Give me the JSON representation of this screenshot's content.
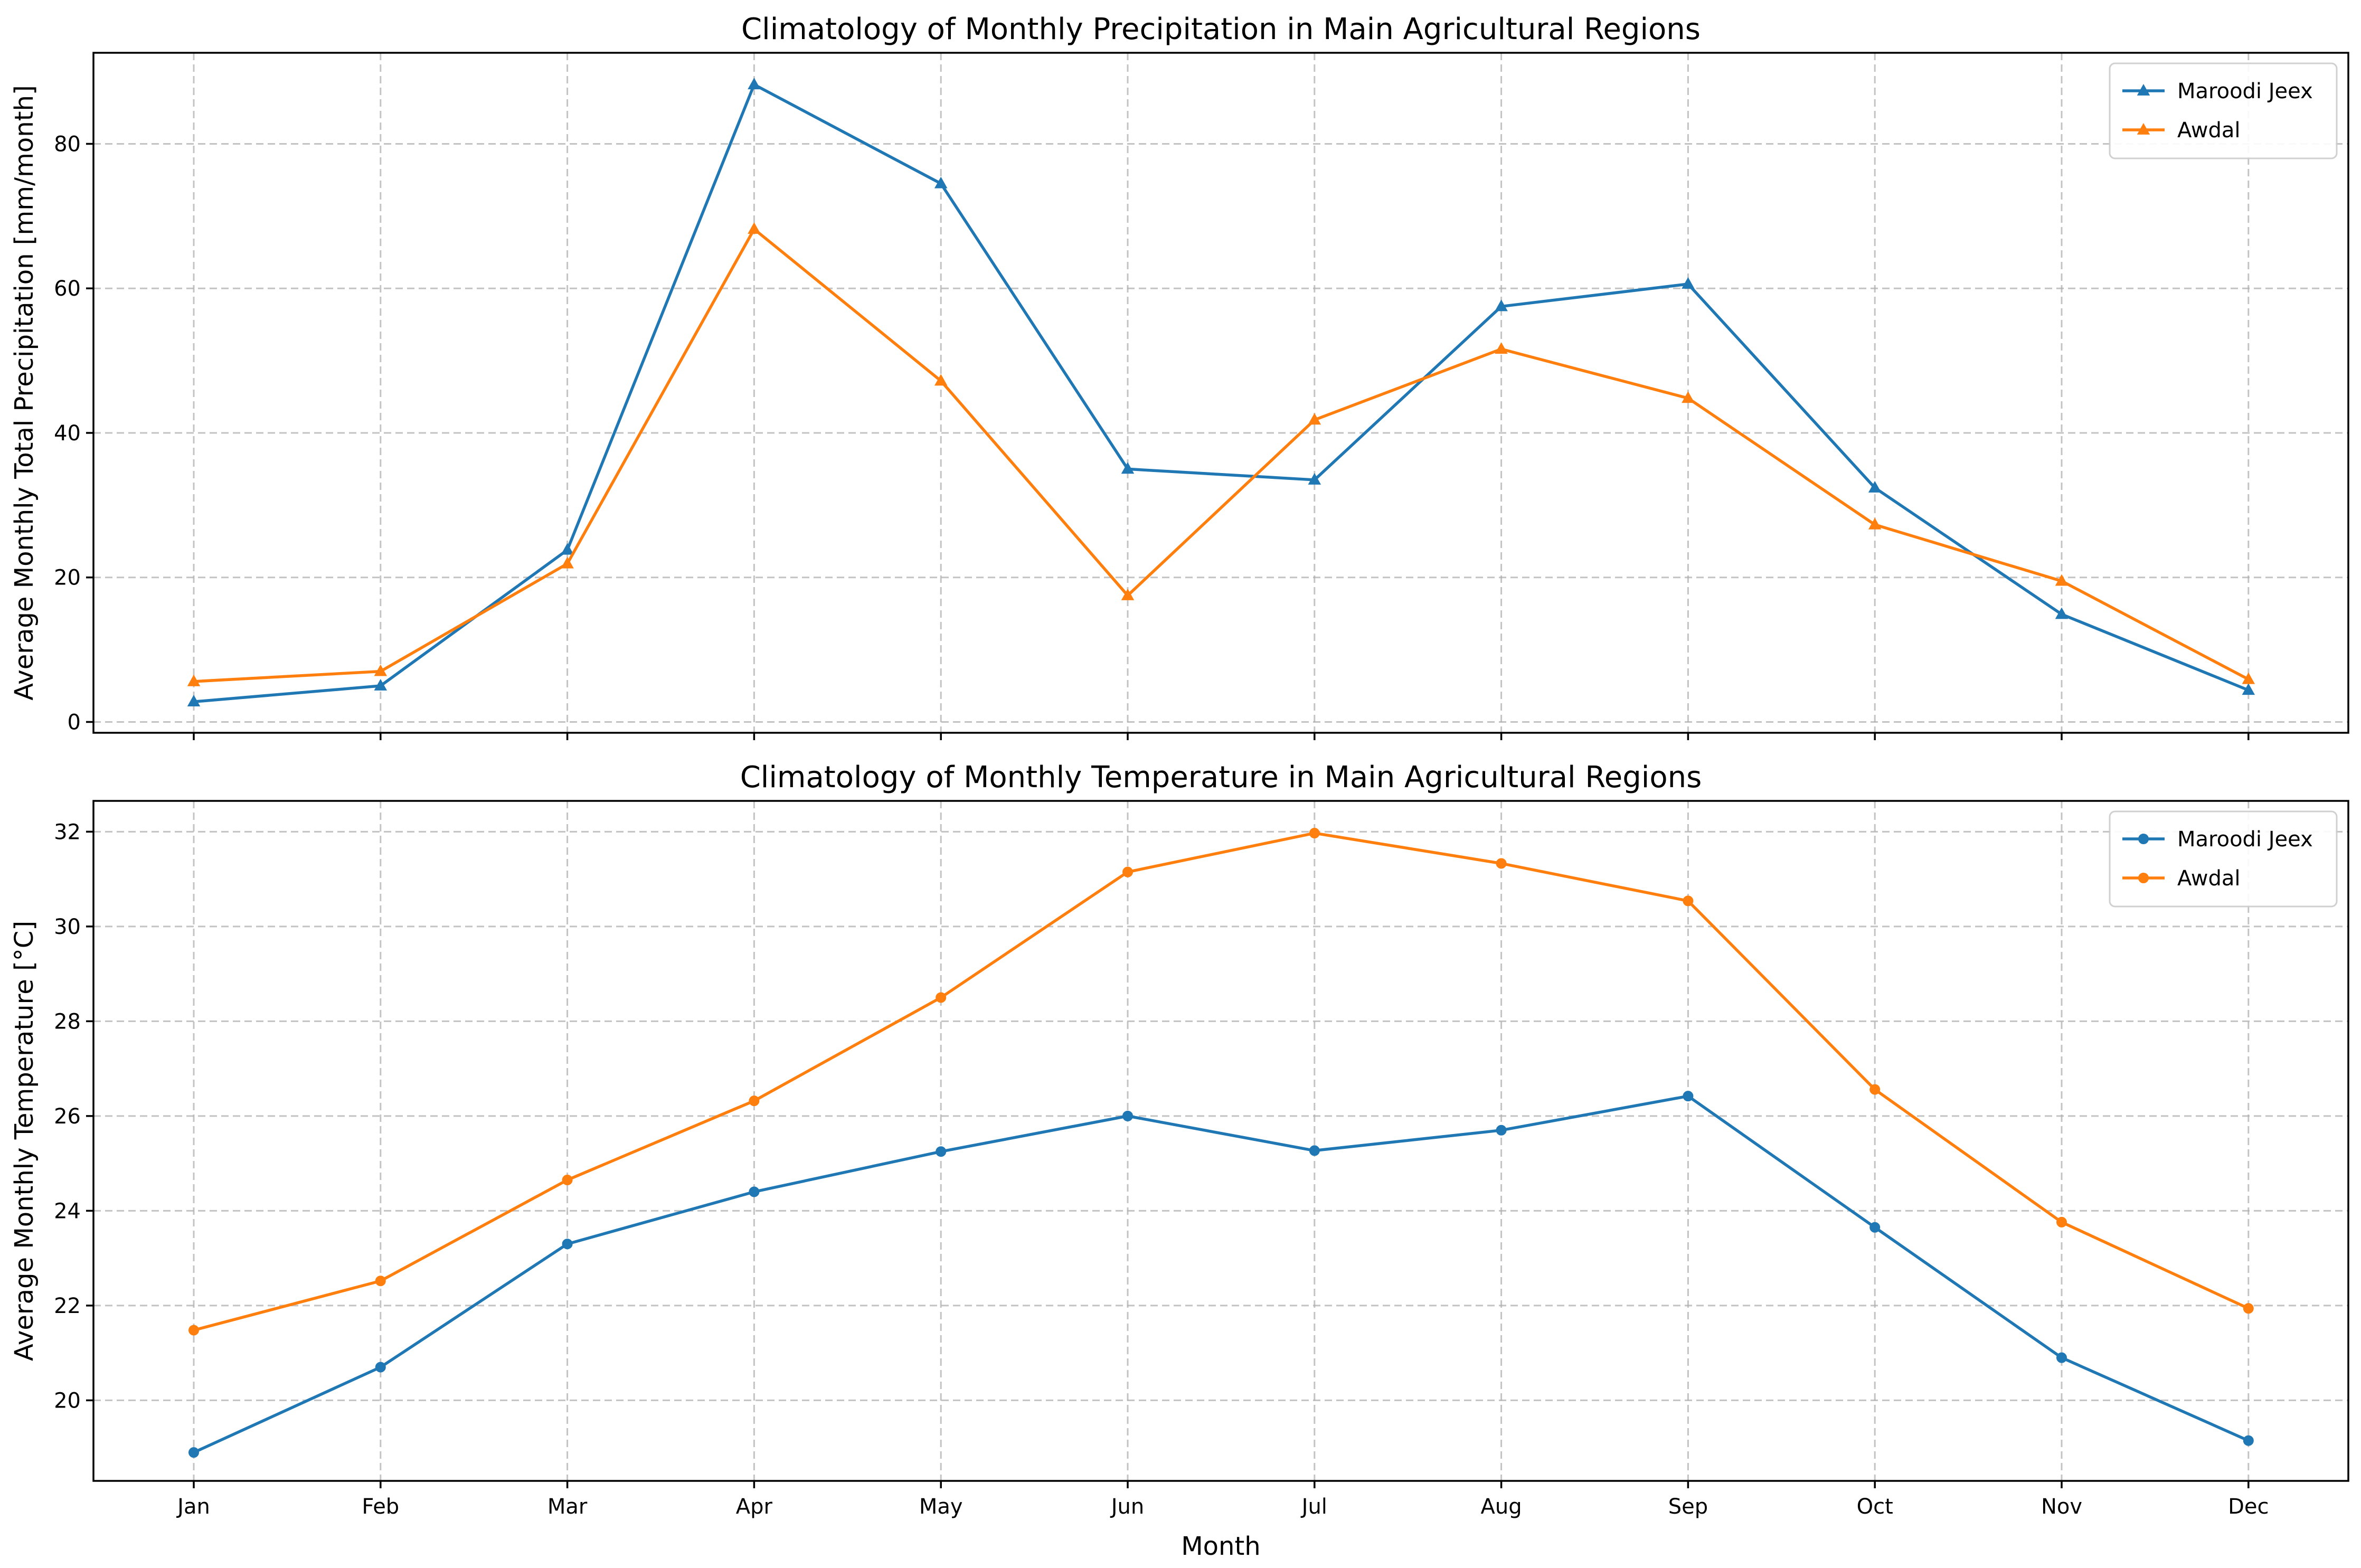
{
  "colors": {
    "maroodi_jeex": "#1f77b4",
    "awdal": "#ff7f0e"
  },
  "chart_data": [
    {
      "type": "line",
      "title": "Climatology of Monthly Precipitation in Main Agricultural Regions",
      "xlabel": "",
      "ylabel": "Average Monthly Total Precipitation [mm/month]",
      "categories": [
        "Jan",
        "Feb",
        "Mar",
        "Apr",
        "May",
        "Jun",
        "Jul",
        "Aug",
        "Sep",
        "Oct",
        "Nov",
        "Dec"
      ],
      "ylim": [
        -1.5,
        92.6
      ],
      "yticks": [
        0,
        20,
        40,
        60,
        80
      ],
      "marker": "triangle",
      "grid": true,
      "legend_position": "top-right",
      "series": [
        {
          "name": "Maroodi Jeex",
          "color": "#1f77b4",
          "values": [
            2.8,
            5.0,
            23.8,
            88.2,
            74.5,
            35.0,
            33.5,
            57.5,
            60.6,
            32.4,
            14.9,
            4.4
          ]
        },
        {
          "name": "Awdal",
          "color": "#ff7f0e",
          "values": [
            5.6,
            7.0,
            21.9,
            68.2,
            47.2,
            17.5,
            41.8,
            51.6,
            44.8,
            27.3,
            19.5,
            5.9
          ]
        }
      ]
    },
    {
      "type": "line",
      "title": "Climatology of Monthly Temperature in Main Agricultural Regions",
      "xlabel": "Month",
      "ylabel": "Average Monthly Temperature [°C]",
      "categories": [
        "Jan",
        "Feb",
        "Mar",
        "Apr",
        "May",
        "Jun",
        "Jul",
        "Aug",
        "Sep",
        "Oct",
        "Nov",
        "Dec"
      ],
      "ylim": [
        18.3,
        32.65
      ],
      "yticks": [
        20,
        22,
        24,
        26,
        28,
        30,
        32
      ],
      "marker": "circle",
      "grid": true,
      "legend_position": "top-right",
      "series": [
        {
          "name": "Maroodi Jeex",
          "color": "#1f77b4",
          "values": [
            18.9,
            20.7,
            23.3,
            24.4,
            25.25,
            26.0,
            25.27,
            25.7,
            26.42,
            23.65,
            20.9,
            19.15
          ]
        },
        {
          "name": "Awdal",
          "color": "#ff7f0e",
          "values": [
            21.48,
            22.52,
            24.65,
            26.32,
            28.5,
            31.15,
            31.97,
            31.33,
            30.54,
            26.56,
            23.76,
            21.94
          ]
        }
      ]
    }
  ]
}
